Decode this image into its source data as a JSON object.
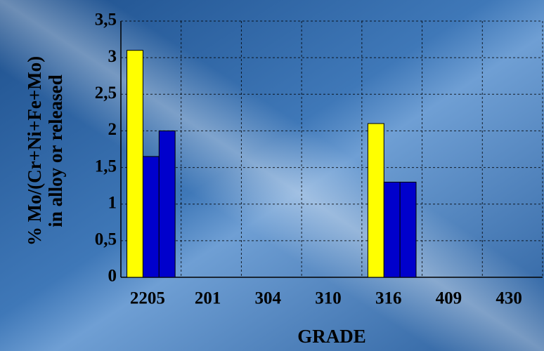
{
  "chart_data": {
    "type": "bar",
    "ylabel": [
      "% Mo/(Cr+Ni+Fe+Mo)",
      "in alloy or released"
    ],
    "xlabel": "GRADE",
    "categories": [
      "2205",
      "201",
      "304",
      "310",
      "316",
      "409",
      "430"
    ],
    "series": [
      {
        "color": "#ffff00",
        "values": [
          3.1,
          0,
          0,
          0,
          2.1,
          0,
          0
        ]
      },
      {
        "color": "#0000cc",
        "values": [
          1.65,
          0,
          0,
          0,
          1.3,
          0,
          0
        ]
      },
      {
        "color": "#0000cc",
        "values": [
          2.0,
          0,
          0,
          0,
          1.3,
          0,
          0
        ]
      }
    ],
    "ylim": [
      0,
      3.5
    ],
    "yticks": [
      0,
      {
        "value": 0.5,
        "label": "0,5"
      },
      1,
      {
        "value": 1.5,
        "label": "1,5"
      },
      2,
      {
        "value": 2.5,
        "label": "2,5"
      },
      3,
      {
        "value": 3.5,
        "label": "3,5"
      }
    ],
    "grid": true
  }
}
